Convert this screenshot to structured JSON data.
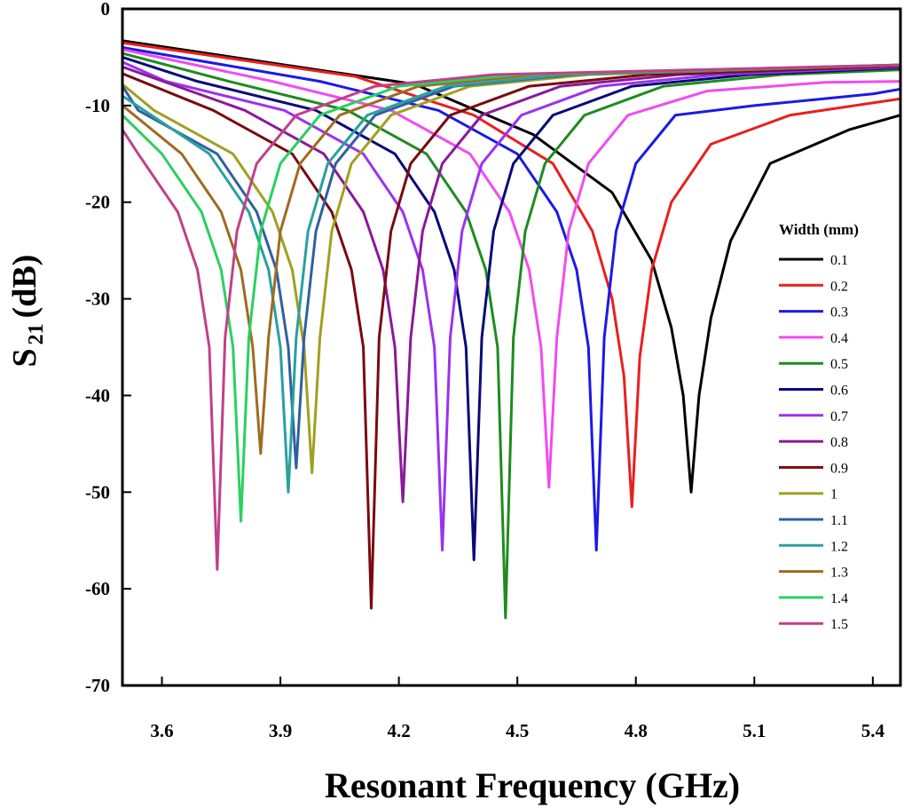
{
  "chart_data": {
    "type": "line",
    "xlabel": "Resonant Frequency (GHz)",
    "ylabel_parts": [
      "S",
      "21",
      "(dB)"
    ],
    "legend_title": "Width (mm)",
    "legend": "right",
    "xlim": [
      3.5,
      5.47
    ],
    "ylim": [
      -70,
      0
    ],
    "xticks": [
      3.6,
      3.9,
      4.2,
      4.5,
      4.8,
      5.1,
      5.4
    ],
    "yticks": [
      0,
      -10,
      -20,
      -30,
      -40,
      -50,
      -60,
      -70
    ],
    "series": [
      {
        "name": "0.1",
        "color": "#000000",
        "x": [
          3.5,
          4.24,
          4.54,
          4.74,
          4.84,
          4.89,
          4.92,
          4.94,
          4.96,
          4.99,
          5.04,
          5.14,
          5.34,
          5.47
        ],
        "values": [
          -3.3,
          -7.8,
          -13,
          -19,
          -26,
          -33,
          -40,
          -50,
          -40,
          -32,
          -24,
          -16,
          -12.5,
          -11
        ]
      },
      {
        "name": "0.2",
        "color": "#e8201e",
        "x": [
          3.5,
          4.09,
          4.39,
          4.59,
          4.69,
          4.74,
          4.77,
          4.79,
          4.81,
          4.84,
          4.89,
          4.99,
          5.19,
          5.47
        ],
        "values": [
          -3.5,
          -7,
          -11,
          -16,
          -23,
          -30,
          -38,
          -51.5,
          -36,
          -27,
          -20,
          -14,
          -11,
          -9.3
        ]
      },
      {
        "name": "0.3",
        "color": "#1a1ae6",
        "x": [
          3.5,
          4.0,
          4.3,
          4.5,
          4.6,
          4.65,
          4.68,
          4.7,
          4.72,
          4.75,
          4.8,
          4.9,
          5.1,
          5.4,
          5.47
        ],
        "values": [
          -4,
          -7.5,
          -10.5,
          -15,
          -21,
          -27,
          -35,
          -56,
          -34,
          -23,
          -16,
          -11,
          -10,
          -8.8,
          -8.3
        ]
      },
      {
        "name": "0.4",
        "color": "#f04cf0",
        "x": [
          3.5,
          3.88,
          4.18,
          4.38,
          4.48,
          4.53,
          4.56,
          4.58,
          4.6,
          4.63,
          4.68,
          4.78,
          4.98,
          5.28,
          5.47
        ],
        "values": [
          -4.2,
          -7.5,
          -10.5,
          -15,
          -21,
          -27,
          -35,
          -49.5,
          -34,
          -23,
          -16,
          -11,
          -8.5,
          -7.6,
          -7.5
        ]
      },
      {
        "name": "0.5",
        "color": "#1e8c1e",
        "x": [
          3.5,
          3.77,
          4.07,
          4.27,
          4.37,
          4.42,
          4.45,
          4.47,
          4.49,
          4.52,
          4.57,
          4.67,
          4.87,
          5.17,
          5.47
        ],
        "values": [
          -4.6,
          -7.5,
          -10.5,
          -15,
          -21,
          -27,
          -35,
          -63,
          -34,
          -23,
          -16,
          -11,
          -8,
          -6.8,
          -6.3
        ]
      },
      {
        "name": "0.6",
        "color": "#0a0a78",
        "x": [
          3.5,
          3.69,
          3.99,
          4.19,
          4.29,
          4.34,
          4.37,
          4.39,
          4.41,
          4.44,
          4.49,
          4.59,
          4.79,
          5.09,
          5.47
        ],
        "values": [
          -5,
          -7.5,
          -10.5,
          -15,
          -21,
          -27,
          -35,
          -57,
          -34,
          -23,
          -16,
          -11,
          -8,
          -6.8,
          -6.1
        ]
      },
      {
        "name": "0.7",
        "color": "#9a33f0",
        "x": [
          3.5,
          3.61,
          3.91,
          4.11,
          4.21,
          4.26,
          4.29,
          4.31,
          4.33,
          4.36,
          4.41,
          4.51,
          4.71,
          5.01,
          5.47
        ],
        "values": [
          -5.5,
          -7.5,
          -10.5,
          -15,
          -21,
          -27,
          -35,
          -56,
          -34,
          -23,
          -16,
          -11,
          -8,
          -6.8,
          -6
        ]
      },
      {
        "name": "0.8",
        "color": "#8a1a9a",
        "x": [
          3.5,
          3.81,
          4.01,
          4.11,
          4.16,
          4.19,
          4.21,
          4.23,
          4.26,
          4.31,
          4.41,
          4.61,
          4.91,
          5.47
        ],
        "values": [
          -6,
          -10.5,
          -15,
          -21,
          -27,
          -35,
          -51,
          -34,
          -23,
          -16,
          -11,
          -8,
          -6.8,
          -5.9
        ]
      },
      {
        "name": "0.9",
        "color": "#7a0a10",
        "x": [
          3.5,
          3.73,
          3.93,
          4.03,
          4.08,
          4.11,
          4.13,
          4.15,
          4.18,
          4.23,
          4.33,
          4.53,
          4.83,
          5.47
        ],
        "values": [
          -6.7,
          -10.5,
          -15,
          -21,
          -27,
          -35,
          -62,
          -34,
          -23,
          -16,
          -11,
          -8,
          -6.8,
          -5.9
        ]
      },
      {
        "name": "1",
        "color": "#a0a020",
        "x": [
          3.5,
          3.58,
          3.78,
          3.88,
          3.93,
          3.96,
          3.98,
          4.0,
          4.03,
          4.08,
          4.18,
          4.38,
          4.68,
          5.47
        ],
        "values": [
          -7.8,
          -10.5,
          -15,
          -21,
          -27,
          -35,
          -48,
          -34,
          -23,
          -16,
          -11,
          -8,
          -6.8,
          -5.8
        ]
      },
      {
        "name": "1.1",
        "color": "#3060a0",
        "x": [
          3.5,
          3.54,
          3.74,
          3.84,
          3.89,
          3.92,
          3.94,
          3.96,
          3.99,
          4.04,
          4.14,
          4.34,
          4.64,
          5.47
        ],
        "values": [
          -8,
          -10.5,
          -15,
          -21,
          -27,
          -35,
          -47.5,
          -34,
          -23,
          -16,
          -11,
          -8,
          -6.8,
          -5.8
        ]
      },
      {
        "name": "1.2",
        "color": "#2aa0a0",
        "x": [
          3.5,
          3.72,
          3.82,
          3.87,
          3.9,
          3.92,
          3.94,
          3.97,
          4.02,
          4.12,
          4.32,
          4.62,
          5.47
        ],
        "values": [
          -9,
          -15,
          -21,
          -27,
          -35,
          -50,
          -34,
          -23,
          -16,
          -11,
          -8,
          -6.8,
          -5.8
        ]
      },
      {
        "name": "1.3",
        "color": "#a06a20",
        "x": [
          3.5,
          3.65,
          3.75,
          3.8,
          3.83,
          3.85,
          3.87,
          3.9,
          3.95,
          4.05,
          4.25,
          4.55,
          5.47
        ],
        "values": [
          -10,
          -15,
          -21,
          -27,
          -35,
          -46,
          -34,
          -23,
          -16,
          -11,
          -8,
          -6.8,
          -5.8
        ]
      },
      {
        "name": "1.4",
        "color": "#2ad060",
        "x": [
          3.5,
          3.6,
          3.7,
          3.75,
          3.78,
          3.8,
          3.82,
          3.85,
          3.9,
          4.0,
          4.2,
          4.5,
          5.47
        ],
        "values": [
          -11,
          -15,
          -21,
          -27,
          -35,
          -53,
          -34,
          -23,
          -16,
          -11,
          -8,
          -6.8,
          -5.8
        ]
      },
      {
        "name": "1.5",
        "color": "#c0408a",
        "x": [
          3.5,
          3.54,
          3.64,
          3.69,
          3.72,
          3.74,
          3.76,
          3.79,
          3.84,
          3.94,
          4.14,
          4.44,
          5.47
        ],
        "values": [
          -12.5,
          -15,
          -21,
          -27,
          -35,
          -58,
          -34,
          -23,
          -16,
          -11,
          -8,
          -6.8,
          -5.8
        ]
      }
    ]
  }
}
